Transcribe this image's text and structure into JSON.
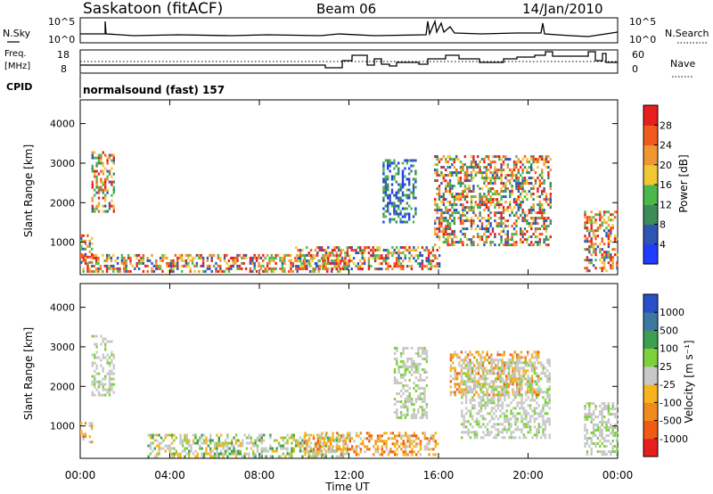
{
  "header": {
    "station": "Saskatoon (fitACF)",
    "beam": "Beam 06",
    "date": "14/Jan/2010"
  },
  "strip": {
    "nsky_label": "N.Sky",
    "nsky_ticks": [
      "10^5",
      "10^0"
    ],
    "nsearch_label": "N.Search",
    "nsearch_ticks": [
      "10^5",
      "10^0"
    ],
    "freq_label": "Freq.",
    "freq_unit": "[MHz]",
    "freq_ticks": [
      "18",
      "8"
    ],
    "nave_label": "Nave",
    "nave_ticks": [
      "60",
      "0"
    ],
    "cpid_label": "CPID",
    "cpid_value": "normalsound (fast) 157"
  },
  "colors": {
    "power_scale": [
      "#1f3cff",
      "#2e55b4",
      "#3c8c5a",
      "#4cb84c",
      "#f0c832",
      "#f09632",
      "#f05a1e",
      "#e61e1e"
    ],
    "velocity_scale": [
      "#e61e1e",
      "#f05a14",
      "#f08c1e",
      "#f5b41e",
      "#c8c8c8",
      "#7dd23c",
      "#3ca050",
      "#3c78a0",
      "#2850c8"
    ]
  },
  "chart_data": [
    {
      "type": "heatmap",
      "title": "",
      "xlabel": "",
      "ylabel": "Slant Range [km]",
      "xticks": [
        "00:00",
        "04:00",
        "08:00",
        "12:00",
        "16:00",
        "20:00",
        "00:00"
      ],
      "xlim": [
        0,
        24
      ],
      "yticks": [
        1000,
        2000,
        3000,
        4000
      ],
      "ylim": [
        180,
        4600
      ],
      "colorbar": {
        "label": "Power [dB]",
        "ticks": [
          4,
          8,
          12,
          16,
          20,
          24,
          28
        ],
        "range": [
          0,
          32
        ]
      },
      "regions": [
        {
          "t0": 0.0,
          "t1": 0.5,
          "r0": 500,
          "r1": 1200,
          "level": "high"
        },
        {
          "t0": 0.5,
          "t1": 1.5,
          "r0": 1800,
          "r1": 3300,
          "level": "mid"
        },
        {
          "t0": 0.1,
          "t1": 12.0,
          "r0": 250,
          "r1": 700,
          "level": "high"
        },
        {
          "t0": 9.5,
          "t1": 16.0,
          "r0": 300,
          "r1": 900,
          "level": "high"
        },
        {
          "t0": 13.5,
          "t1": 15.0,
          "r0": 1500,
          "r1": 3100,
          "level": "low"
        },
        {
          "t0": 15.8,
          "t1": 21.0,
          "r0": 900,
          "r1": 3200,
          "level": "mid"
        },
        {
          "t0": 22.5,
          "t1": 24.0,
          "r0": 250,
          "r1": 1800,
          "level": "high"
        }
      ]
    },
    {
      "type": "heatmap",
      "title": "",
      "xlabel": "Time UT",
      "ylabel": "Slant Range [km]",
      "xticks": [
        "00:00",
        "04:00",
        "08:00",
        "12:00",
        "16:00",
        "20:00",
        "00:00"
      ],
      "xlim": [
        0,
        24
      ],
      "yticks": [
        1000,
        2000,
        3000,
        4000
      ],
      "ylim": [
        180,
        4600
      ],
      "colorbar": {
        "label": "Velocity [m s⁻¹]",
        "ticks": [
          "1000",
          "500",
          "100",
          "25",
          "-25",
          "-100",
          "-500",
          "-1000"
        ]
      },
      "regions": [
        {
          "t0": 0.0,
          "t1": 0.5,
          "r0": 600,
          "r1": 1100,
          "level": "neg"
        },
        {
          "t0": 0.5,
          "t1": 1.5,
          "r0": 1800,
          "r1": 3300,
          "level": "zero"
        },
        {
          "t0": 3.0,
          "t1": 12.0,
          "r0": 200,
          "r1": 800,
          "level": "mixed"
        },
        {
          "t0": 10.0,
          "t1": 16.0,
          "r0": 250,
          "r1": 850,
          "level": "neg"
        },
        {
          "t0": 14.0,
          "t1": 15.5,
          "r0": 1200,
          "r1": 3000,
          "level": "zero"
        },
        {
          "t0": 16.5,
          "t1": 20.5,
          "r0": 1800,
          "r1": 2900,
          "level": "neg"
        },
        {
          "t0": 17.0,
          "t1": 21.0,
          "r0": 700,
          "r1": 2700,
          "level": "zero"
        },
        {
          "t0": 22.5,
          "t1": 24.0,
          "r0": 300,
          "r1": 1600,
          "level": "zero"
        }
      ]
    }
  ]
}
